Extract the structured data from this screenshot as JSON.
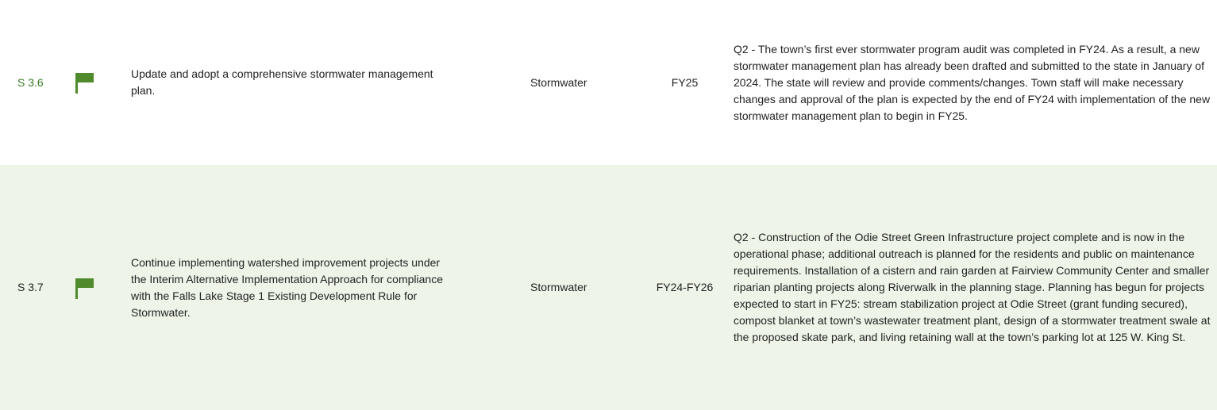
{
  "table": {
    "rows": [
      {
        "id": "S 3.6",
        "description": "Update and adopt a comprehensive stormwater management plan.",
        "category": "Stormwater",
        "timeframe": "FY25",
        "update": "Q2 - The town’s first ever stormwater program audit was completed in FY24. As a result, a new stormwater management plan has already been drafted and submitted to the state in January of 2024. The state will review and provide comments/changes. Town staff will make necessary changes and approval of the plan is expected by the end of FY24 with implementation of the new stormwater management plan to begin in FY25."
      },
      {
        "id": "S 3.7",
        "description": "Continue implementing watershed improvement projects under the Interim Alternative Implementation Approach for compliance with the Falls Lake Stage 1 Existing Development Rule for Stormwater.",
        "category": "Stormwater",
        "timeframe": "FY24-FY26",
        "update": "Q2 - Construction of the Odie Street Green Infrastructure project complete and is now in the operational phase; additional outreach is planned for the residents and public on maintenance requirements. Installation of a cistern and rain garden at Fairview Community Center and smaller riparian planting projects along Riverwalk in the planning stage.  Planning has begun for projects expected to start in FY25: stream stabilization project at Odie Street (grant funding secured), compost blanket at town’s wastewater treatment plant, design of a stormwater treatment swale at the proposed skate park, and living retaining wall at the town’s parking lot at 125 W. King St."
      }
    ]
  }
}
